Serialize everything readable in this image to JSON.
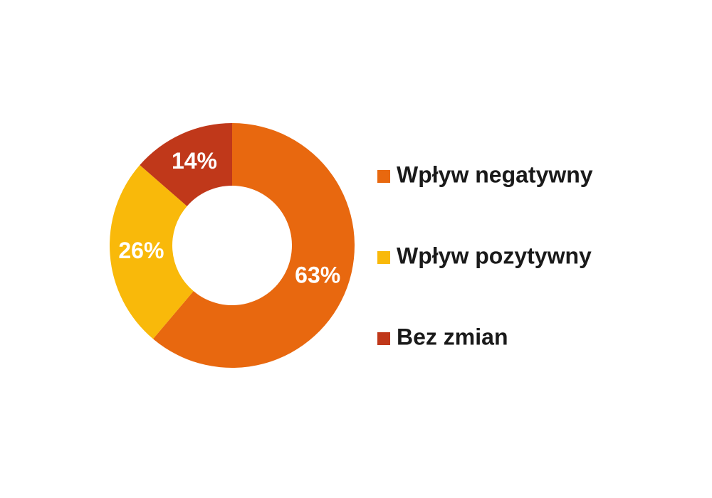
{
  "chart_data": {
    "type": "donut",
    "categories": [
      "Wpływ negatywny",
      "Wpływ pozytywny",
      "Bez zmian"
    ],
    "values": [
      63,
      26,
      14
    ],
    "value_labels": [
      "63%",
      "26%",
      "14%"
    ],
    "colors": [
      "#e8680f",
      "#f9b90a",
      "#c0381a"
    ],
    "legend": "right"
  }
}
